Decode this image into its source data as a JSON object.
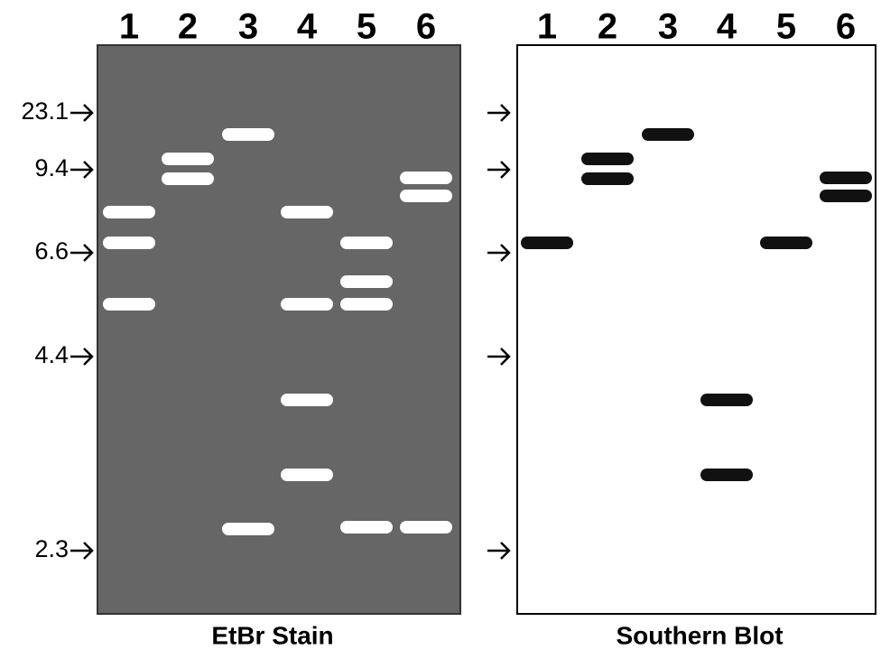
{
  "left_panel": {
    "lanes": [
      "1",
      "2",
      "3",
      "4",
      "5",
      "6"
    ],
    "markers": [
      "23.1",
      "9.4",
      "6.6",
      "4.4",
      "2.3"
    ],
    "caption": "EtBr Stain"
  },
  "right_panel": {
    "lanes": [
      "1",
      "2",
      "3",
      "4",
      "5",
      "6"
    ],
    "caption": "Southern Blot"
  }
}
